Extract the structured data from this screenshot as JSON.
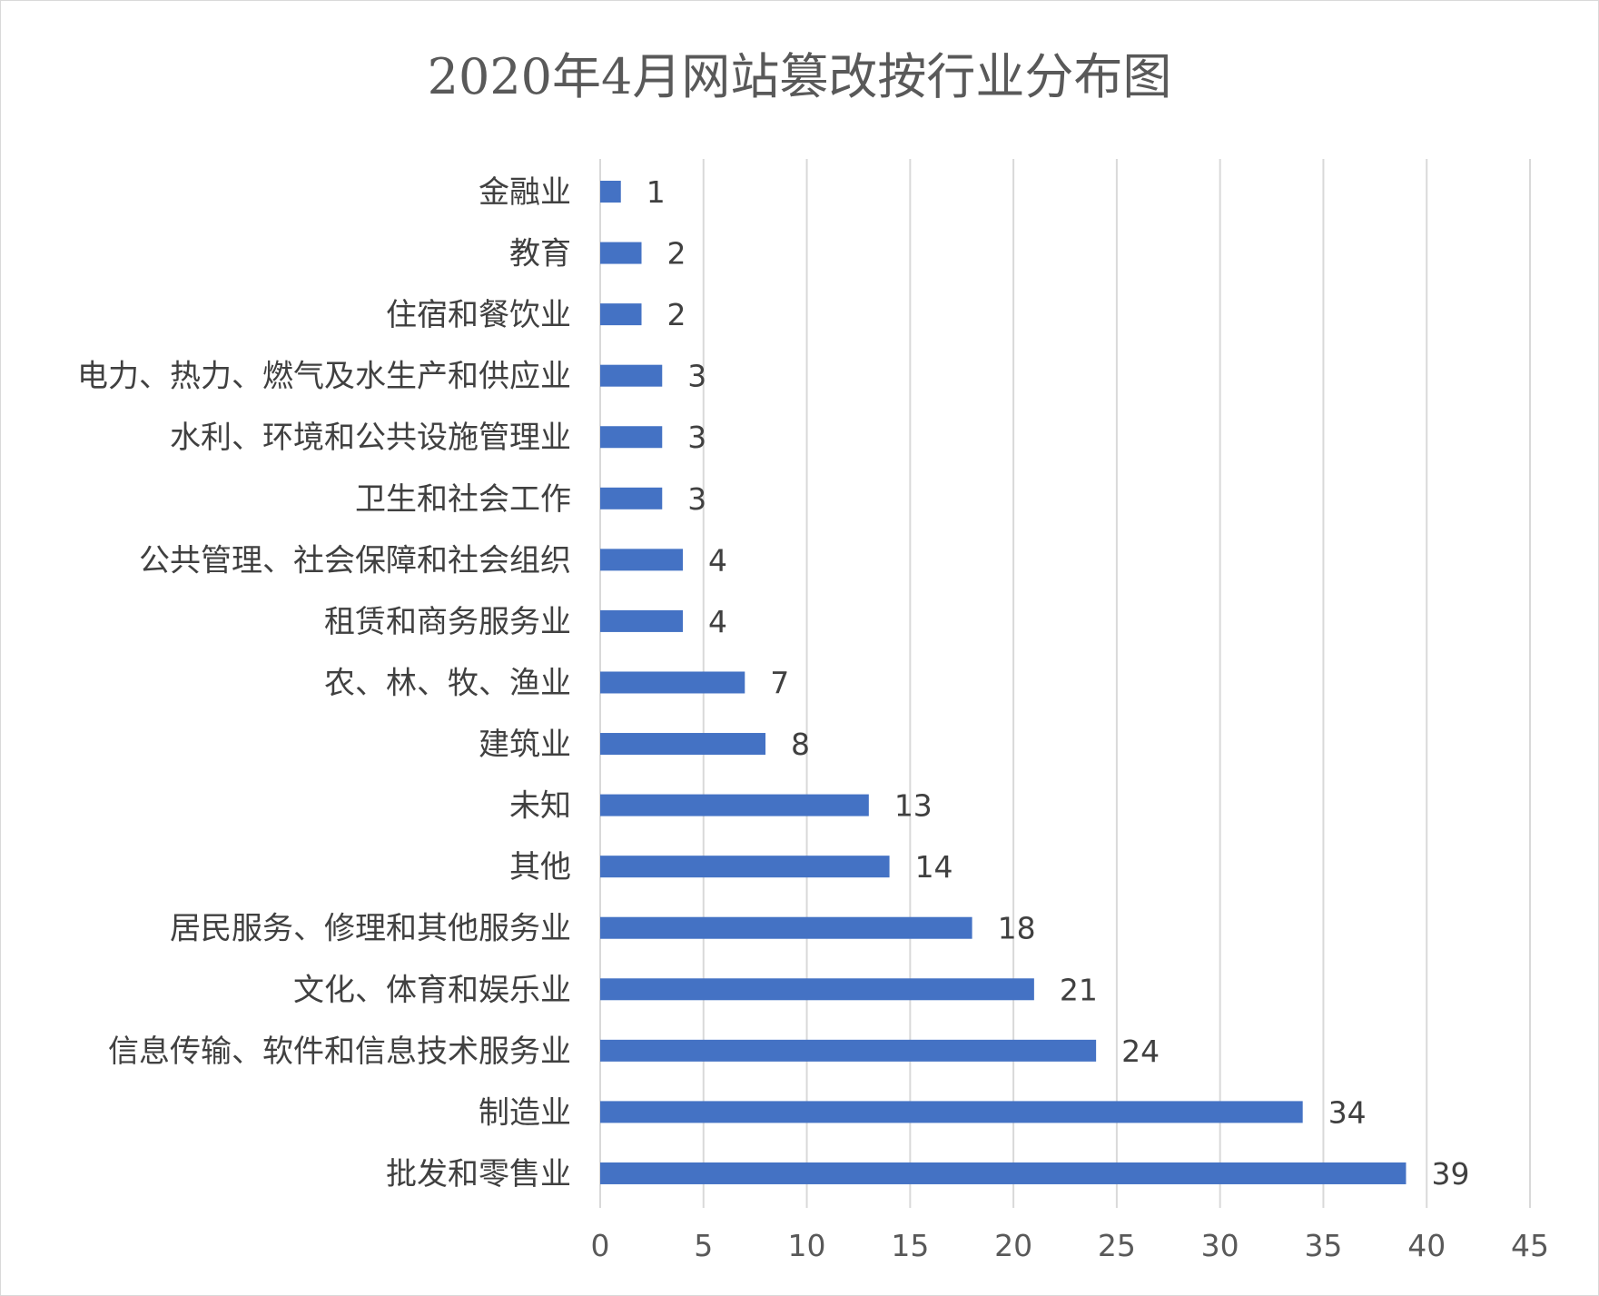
{
  "chart_data": {
    "type": "bar",
    "orientation": "horizontal",
    "title": "2020年4月网站篡改按行业分布图",
    "xlabel": "",
    "ylabel": "",
    "xlim": [
      0,
      45
    ],
    "ticks": [
      "0",
      "5",
      "10",
      "15",
      "20",
      "25",
      "30",
      "35",
      "40",
      "45"
    ],
    "grid": true,
    "legend": "none",
    "bar_color": "#4472C4",
    "categories": [
      "金融业",
      "教育",
      "住宿和餐饮业",
      "电力、热力、燃气及水生产和供应业",
      "水利、环境和公共设施管理业",
      "卫生和社会工作",
      "公共管理、社会保障和社会组织",
      "租赁和商务服务业",
      "农、林、牧、渔业",
      "建筑业",
      "未知",
      "其他",
      "居民服务、修理和其他服务业",
      "文化、体育和娱乐业",
      "信息传输、软件和信息技术服务业",
      "制造业",
      "批发和零售业"
    ],
    "values": [
      1,
      2,
      2,
      3,
      3,
      3,
      4,
      4,
      7,
      8,
      13,
      14,
      18,
      21,
      24,
      34,
      39
    ]
  }
}
